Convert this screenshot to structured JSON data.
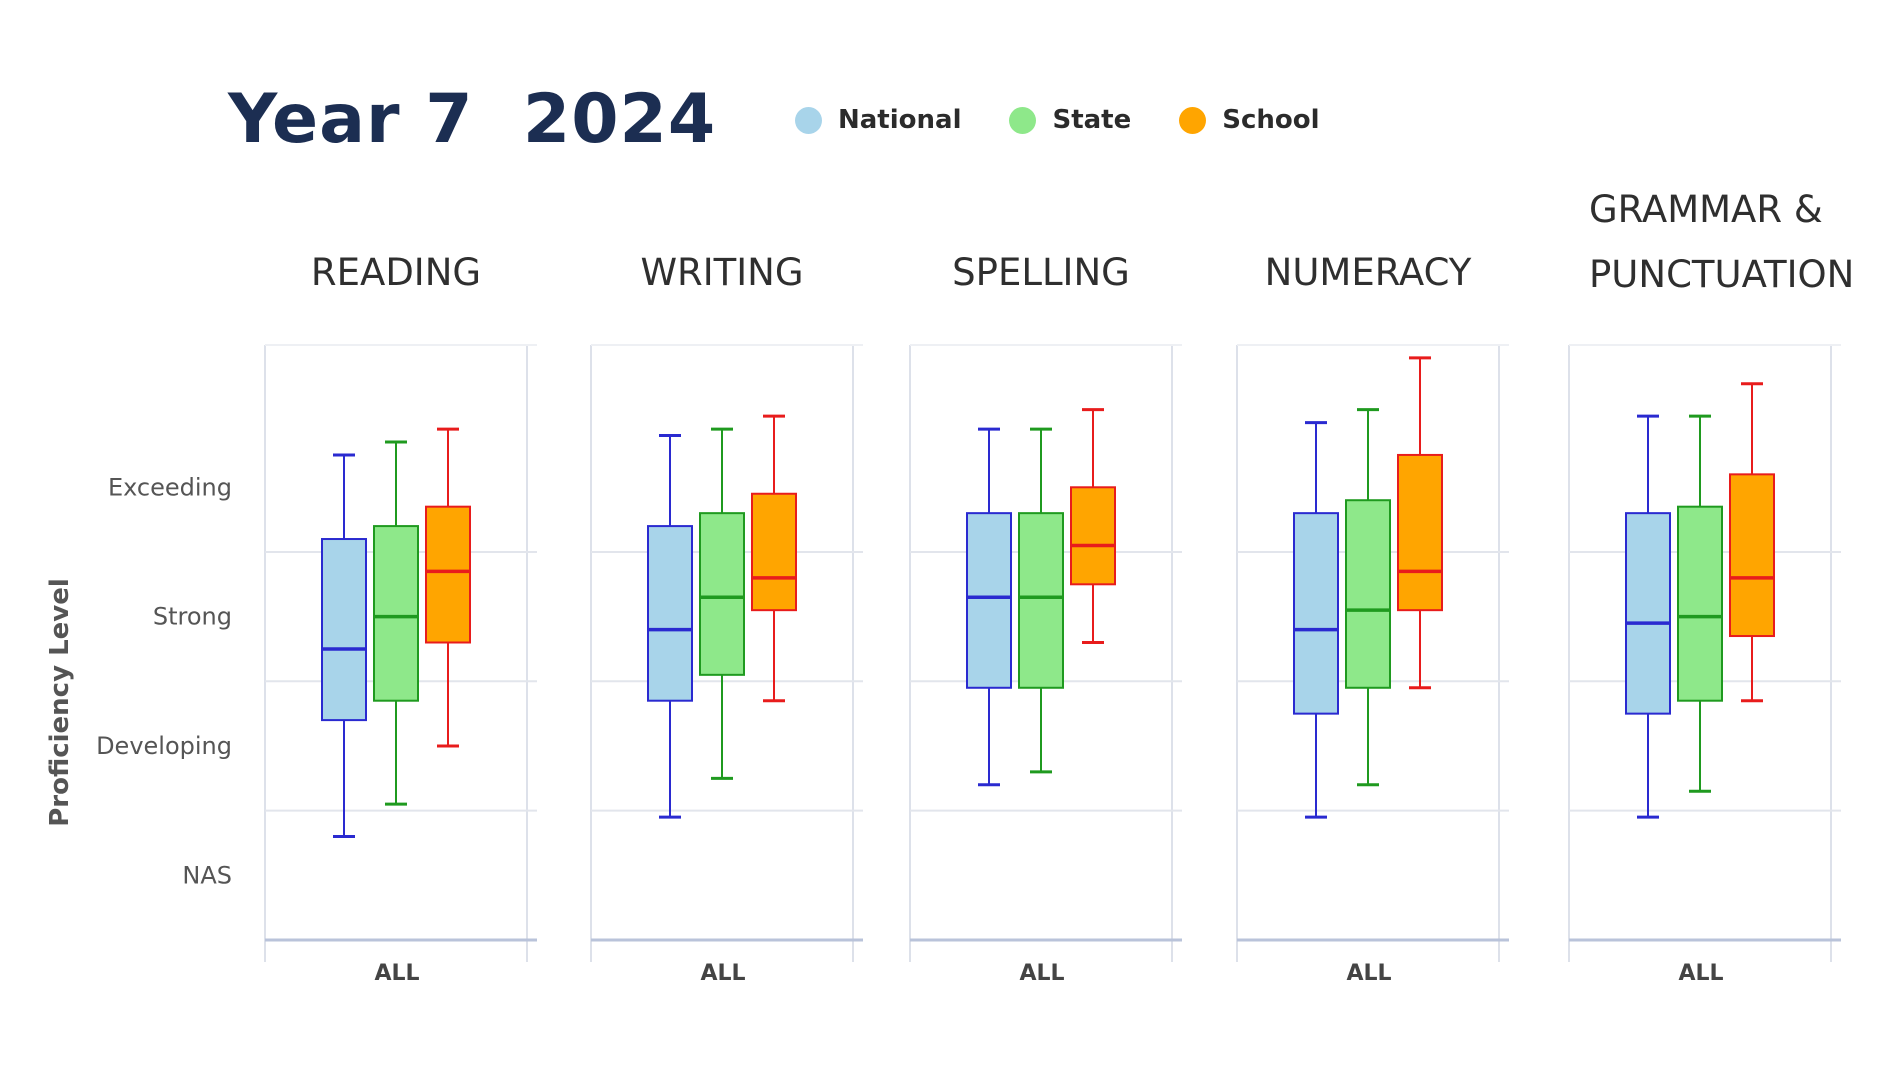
{
  "header": {
    "title": "Year 7  2024"
  },
  "legend": [
    {
      "name": "National",
      "color": "#a8d4ea"
    },
    {
      "name": "State",
      "color": "#8ee88a"
    },
    {
      "name": "School",
      "color": "#ffa500"
    }
  ],
  "series_styles": [
    {
      "name": "National",
      "fill": "#a8d4ea",
      "stroke": "#2a2ad0"
    },
    {
      "name": "State",
      "fill": "#8ee88a",
      "stroke": "#1f9a1f"
    },
    {
      "name": "School",
      "fill": "#ffa500",
      "stroke": "#e81c1c"
    }
  ],
  "chart_data": [
    {
      "type": "box",
      "title_lines": [
        "READING"
      ],
      "ylabel": "Proficiency Level",
      "ytick_labels": [
        "NAS",
        "Developing",
        "Strong",
        "Exceeding"
      ],
      "ylim": [
        0,
        4
      ],
      "categories": [
        "ALL"
      ],
      "series": [
        {
          "name": "National",
          "whisker_low": 0.8,
          "q1": 1.7,
          "median": 2.25,
          "q3": 3.1,
          "whisker_high": 3.75
        },
        {
          "name": "State",
          "whisker_low": 1.05,
          "q1": 1.85,
          "median": 2.5,
          "q3": 3.2,
          "whisker_high": 3.85
        },
        {
          "name": "School",
          "whisker_low": 1.5,
          "q1": 2.3,
          "median": 2.85,
          "q3": 3.35,
          "whisker_high": 3.95
        }
      ]
    },
    {
      "type": "box",
      "title_lines": [
        "WRITING"
      ],
      "categories": [
        "ALL"
      ],
      "series": [
        {
          "name": "National",
          "whisker_low": 0.95,
          "q1": 1.85,
          "median": 2.4,
          "q3": 3.2,
          "whisker_high": 3.9
        },
        {
          "name": "State",
          "whisker_low": 1.25,
          "q1": 2.05,
          "median": 2.65,
          "q3": 3.3,
          "whisker_high": 3.95
        },
        {
          "name": "School",
          "whisker_low": 1.85,
          "q1": 2.55,
          "median": 2.8,
          "q3": 3.45,
          "whisker_high": 4.05
        }
      ]
    },
    {
      "type": "box",
      "title_lines": [
        "SPELLING"
      ],
      "categories": [
        "ALL"
      ],
      "series": [
        {
          "name": "National",
          "whisker_low": 1.2,
          "q1": 1.95,
          "median": 2.65,
          "q3": 3.3,
          "whisker_high": 3.95
        },
        {
          "name": "State",
          "whisker_low": 1.3,
          "q1": 1.95,
          "median": 2.65,
          "q3": 3.3,
          "whisker_high": 3.95
        },
        {
          "name": "School",
          "whisker_low": 2.3,
          "q1": 2.75,
          "median": 3.05,
          "q3": 3.5,
          "whisker_high": 4.1
        }
      ]
    },
    {
      "type": "box",
      "title_lines": [
        "NUMERACY"
      ],
      "categories": [
        "ALL"
      ],
      "series": [
        {
          "name": "National",
          "whisker_low": 0.95,
          "q1": 1.75,
          "median": 2.4,
          "q3": 3.3,
          "whisker_high": 4.0
        },
        {
          "name": "State",
          "whisker_low": 1.2,
          "q1": 1.95,
          "median": 2.55,
          "q3": 3.4,
          "whisker_high": 4.1
        },
        {
          "name": "School",
          "whisker_low": 1.95,
          "q1": 2.55,
          "median": 2.85,
          "q3": 3.75,
          "whisker_high": 4.5
        }
      ]
    },
    {
      "type": "box",
      "title_lines": [
        "GRAMMAR &",
        "PUNCTUATION"
      ],
      "categories": [
        "ALL"
      ],
      "series": [
        {
          "name": "National",
          "whisker_low": 0.95,
          "q1": 1.75,
          "median": 2.45,
          "q3": 3.3,
          "whisker_high": 4.05
        },
        {
          "name": "State",
          "whisker_low": 1.15,
          "q1": 1.85,
          "median": 2.5,
          "q3": 3.35,
          "whisker_high": 4.05
        },
        {
          "name": "School",
          "whisker_low": 1.85,
          "q1": 2.35,
          "median": 2.8,
          "q3": 3.6,
          "whisker_high": 4.3
        }
      ]
    }
  ]
}
